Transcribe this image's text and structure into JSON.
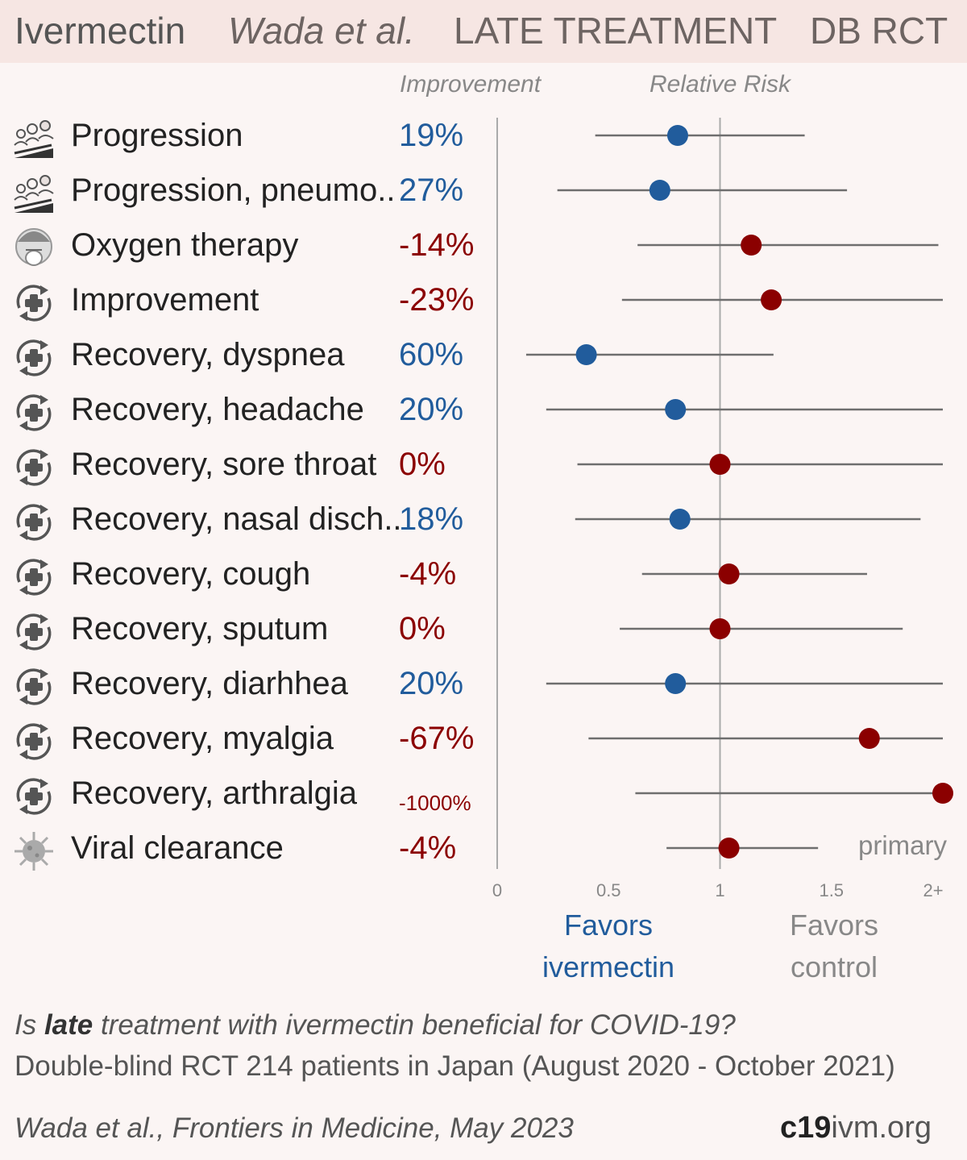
{
  "header": {
    "drug": "Ivermectin",
    "authors": "Wada et al.",
    "treatment": "LATE TREATMENT",
    "study_type": "DB RCT"
  },
  "columns": {
    "improvement": "Improvement",
    "relative_risk": "Relative Risk"
  },
  "colors": {
    "positive": "#215c9c",
    "negative": "#8b0000",
    "ci": "#6e6e6e",
    "header_bg": "#f6e6e3",
    "bg": "#fbf5f4"
  },
  "chart_data": {
    "type": "forest",
    "x_scale": {
      "min": 0,
      "max": 2,
      "ticks": [
        0,
        0.5,
        1,
        1.5,
        2
      ],
      "tick_labels": [
        "0",
        "0.5",
        "1",
        "1.5",
        "2+"
      ]
    },
    "reference_line": 1,
    "rows": [
      {
        "label": "Progression",
        "icon": "progression-icon",
        "improvement": "19%",
        "rr": 0.81,
        "lo": 0.44,
        "hi": 1.38,
        "direction": "pos"
      },
      {
        "label": "Progression, pneumo..",
        "icon": "progression-icon",
        "improvement": "27%",
        "rr": 0.73,
        "lo": 0.27,
        "hi": 1.57,
        "direction": "pos"
      },
      {
        "label": "Oxygen therapy",
        "icon": "oxygen-mask-icon",
        "improvement": "-14%",
        "rr": 1.14,
        "lo": 0.63,
        "hi": 1.98,
        "direction": "neg"
      },
      {
        "label": "Improvement",
        "icon": "recovery-icon",
        "improvement": "-23%",
        "rr": 1.23,
        "lo": 0.56,
        "hi": 2.0,
        "direction": "neg"
      },
      {
        "label": "Recovery, dyspnea",
        "icon": "recovery-icon",
        "improvement": "60%",
        "rr": 0.4,
        "lo": 0.13,
        "hi": 1.24,
        "direction": "pos"
      },
      {
        "label": "Recovery, headache",
        "icon": "recovery-icon",
        "improvement": "20%",
        "rr": 0.8,
        "lo": 0.22,
        "hi": 2.0,
        "direction": "pos"
      },
      {
        "label": "Recovery, sore throat",
        "icon": "recovery-icon",
        "improvement": "0%",
        "rr": 1.0,
        "lo": 0.36,
        "hi": 2.0,
        "direction": "neg"
      },
      {
        "label": "Recovery, nasal disch..",
        "icon": "recovery-icon",
        "improvement": "18%",
        "rr": 0.82,
        "lo": 0.35,
        "hi": 1.9,
        "direction": "pos"
      },
      {
        "label": "Recovery, cough",
        "icon": "recovery-icon",
        "improvement": "-4%",
        "rr": 1.04,
        "lo": 0.65,
        "hi": 1.66,
        "direction": "neg"
      },
      {
        "label": "Recovery, sputum",
        "icon": "recovery-icon",
        "improvement": "0%",
        "rr": 1.0,
        "lo": 0.55,
        "hi": 1.82,
        "direction": "neg"
      },
      {
        "label": "Recovery, diarhhea",
        "icon": "recovery-icon",
        "improvement": "20%",
        "rr": 0.8,
        "lo": 0.22,
        "hi": 2.0,
        "direction": "pos"
      },
      {
        "label": "Recovery, myalgia",
        "icon": "recovery-icon",
        "improvement": "-67%",
        "rr": 1.67,
        "lo": 0.41,
        "hi": 2.0,
        "direction": "neg"
      },
      {
        "label": "Recovery, arthralgia",
        "icon": "recovery-icon",
        "improvement": "-1000%",
        "rr": 2.0,
        "lo": 0.62,
        "hi": 2.0,
        "direction": "neg"
      },
      {
        "label": "Viral clearance",
        "icon": "virus-icon",
        "improvement": "-4%",
        "rr": 1.04,
        "lo": 0.76,
        "hi": 1.44,
        "direction": "neg"
      }
    ],
    "favors_left": [
      "Favors",
      "ivermectin"
    ],
    "favors_right": [
      "Favors",
      "control"
    ],
    "primary_label": "primary"
  },
  "footer": {
    "question_pre": "Is ",
    "question_bold": "late",
    "question_post": " treatment with ivermectin beneficial for COVID-19?",
    "design": "Double-blind RCT 214 patients in Japan (August 2020 - October 2021)",
    "citation": "Wada et al., Frontiers in Medicine, May 2023",
    "brand_bold": "c19",
    "brand_rest": "ivm.org"
  }
}
